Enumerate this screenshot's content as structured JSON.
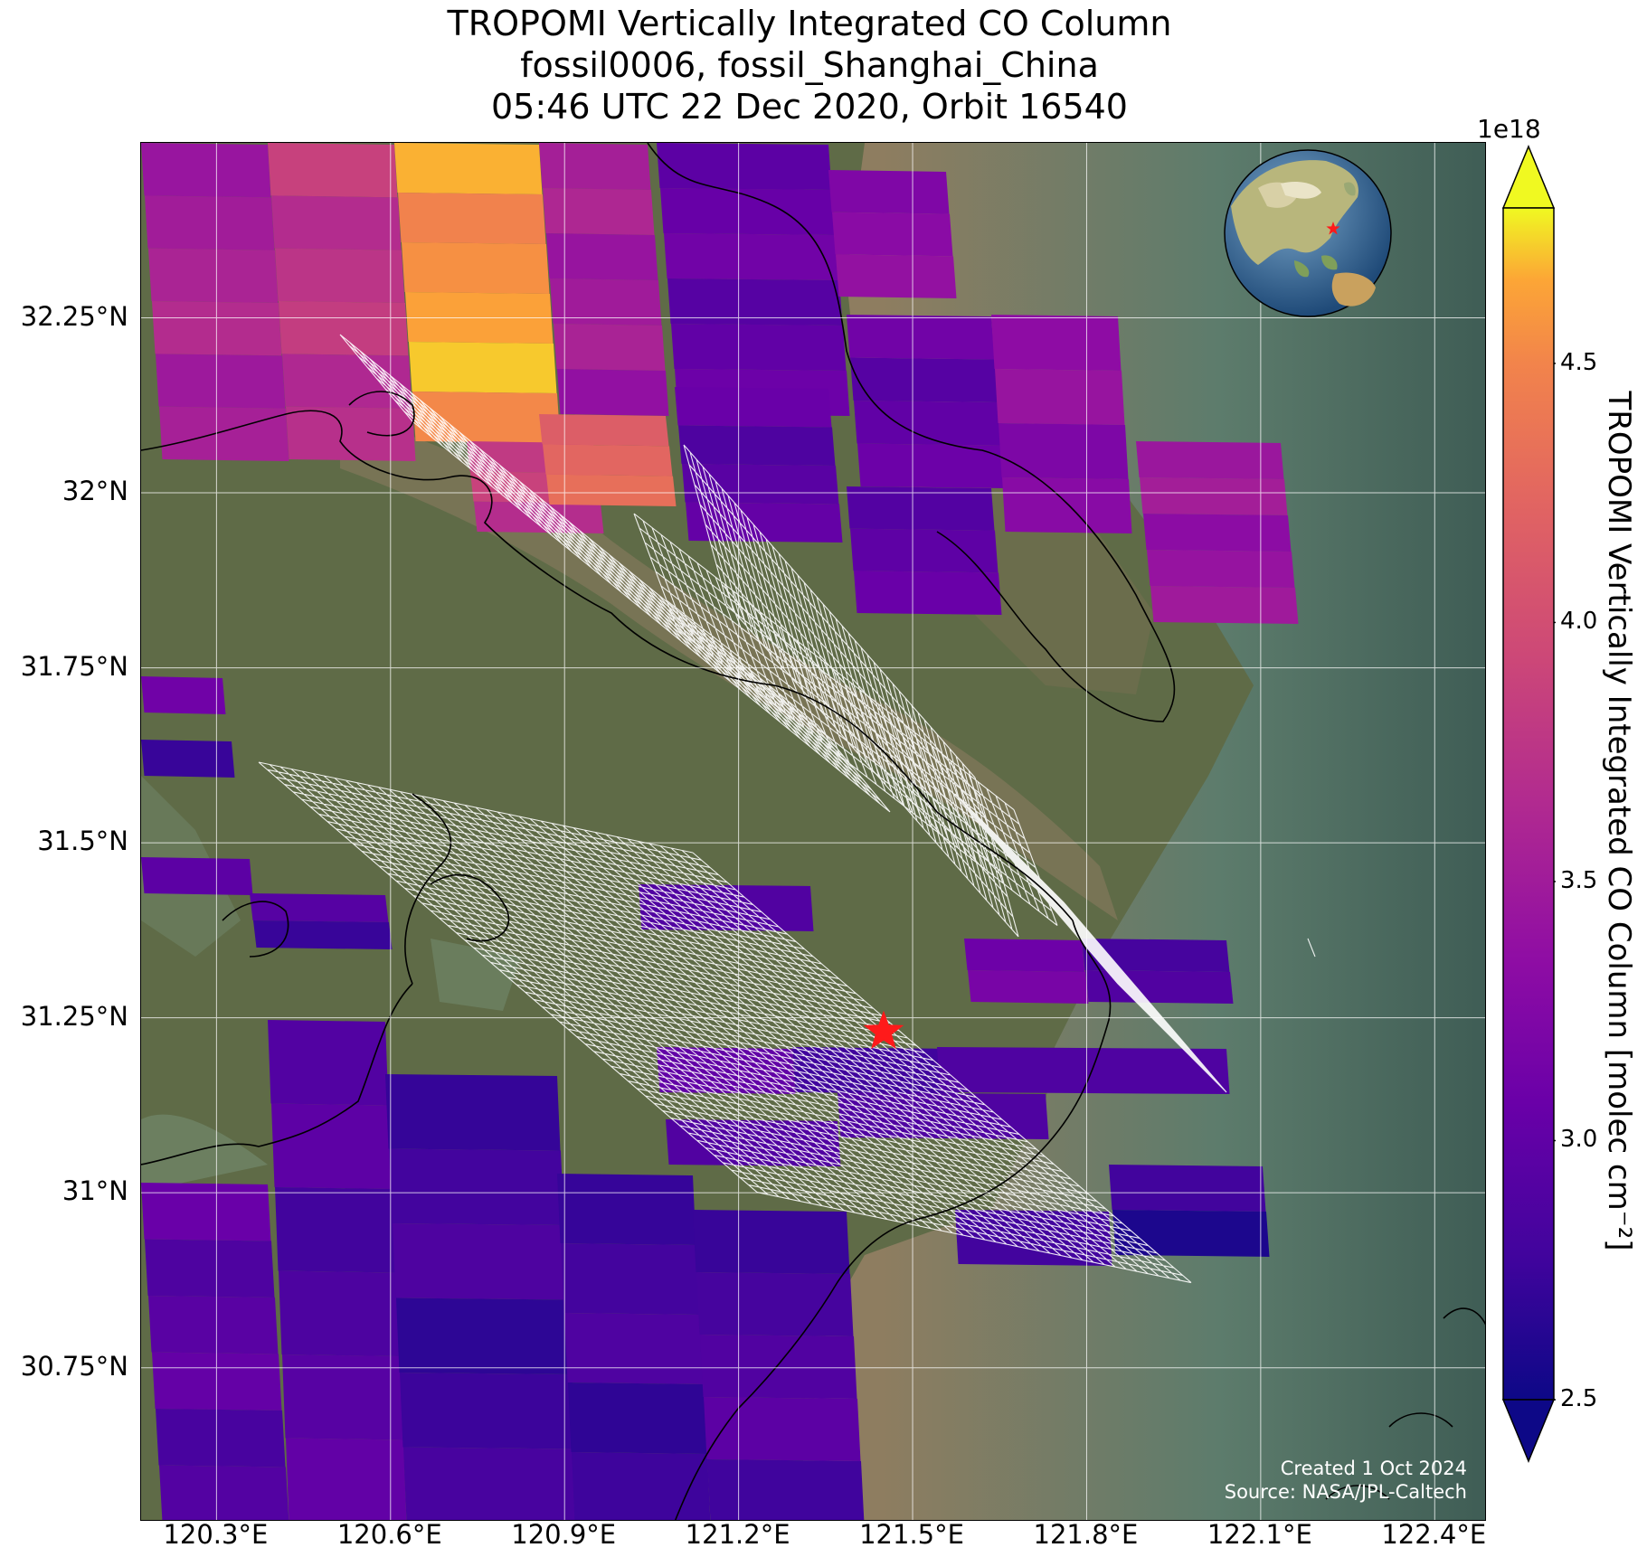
{
  "title": {
    "line1": "TROPOMI Vertically Integrated CO Column",
    "line2": "fossil0006, fossil_Shanghai_China",
    "line3": "05:46 UTC 22 Dec 2020, Orbit 16540"
  },
  "map": {
    "lon_range": [
      120.17,
      122.49
    ],
    "lat_range": [
      30.53,
      32.5
    ],
    "lat_ticks": [
      "32.25°N",
      "32°N",
      "31.75°N",
      "31.5°N",
      "31.25°N",
      "31°N",
      "30.75°N"
    ],
    "lon_ticks": [
      "120.3°E",
      "120.6°E",
      "120.9°E",
      "121.2°E",
      "121.5°E",
      "121.8°E",
      "122.1°E",
      "122.4°E"
    ],
    "target_marker": {
      "lon": 121.45,
      "lat": 31.23,
      "color": "#ff1a1a",
      "icon": "star-icon"
    },
    "inset_globe": {
      "icon": "globe-icon",
      "marker_color": "#ff1a1a"
    },
    "grid": true
  },
  "credits": {
    "created": "Created 1 Oct 2024",
    "source": "Source: NASA/JPL-Caltech"
  },
  "colorbar": {
    "label": "TROPOMI Vertically Integrated CO Column [molec cm⁻²]",
    "exponent": "1e18",
    "ticks": [
      "2.5",
      "3.0",
      "3.5",
      "4.0",
      "4.5"
    ],
    "tick_values": [
      2.5,
      3.0,
      3.5,
      4.0,
      4.5
    ],
    "vmin": 2.5,
    "vmax": 4.8,
    "colormap": "plasma",
    "extend": "both"
  },
  "colors": {
    "land": "#5f6b4a",
    "water_river": "#8a7b5e",
    "sea": "#5a7a68",
    "coastline": "#000000",
    "sounding_outline": "#ffffff"
  }
}
